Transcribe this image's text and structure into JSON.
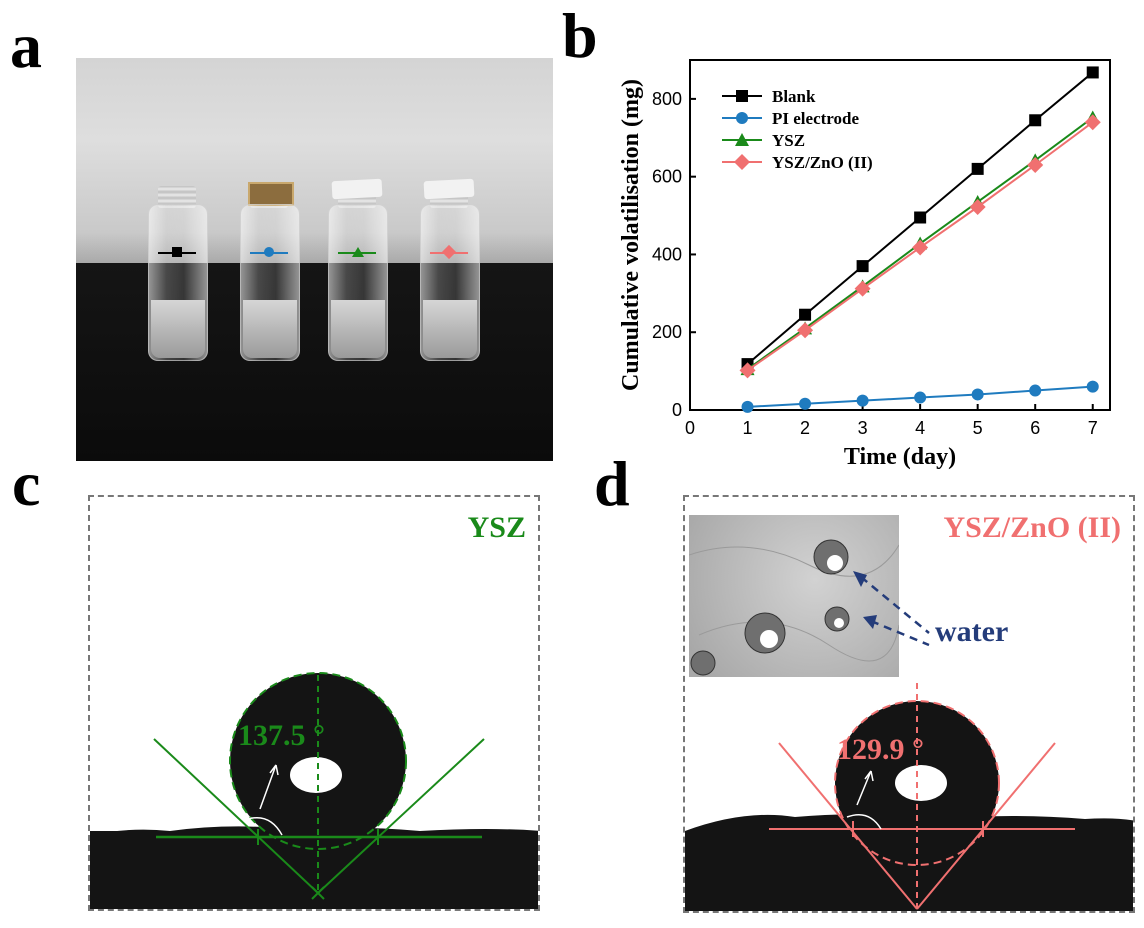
{
  "panel_labels": {
    "a": "a",
    "b": "b",
    "c": "c",
    "d": "d"
  },
  "colors": {
    "blank": "#000000",
    "pi": "#1f7bbf",
    "ysz": "#1a8a1a",
    "yszzno": "#f07070",
    "water_arrow": "#243c7a"
  },
  "chart_data": {
    "type": "line",
    "x": [
      1,
      2,
      3,
      4,
      5,
      6,
      7
    ],
    "series": [
      {
        "name": "Blank",
        "marker": "square",
        "color": "#000000",
        "values": [
          118,
          245,
          370,
          495,
          620,
          745,
          868
        ]
      },
      {
        "name": "PI electrode",
        "marker": "circle",
        "color": "#1f7bbf",
        "values": [
          8,
          16,
          24,
          32,
          40,
          50,
          60
        ]
      },
      {
        "name": "YSZ",
        "marker": "triangle",
        "color": "#1a8a1a",
        "values": [
          105,
          210,
          318,
          428,
          535,
          642,
          752
        ]
      },
      {
        "name": "YSZ/ZnO (II)",
        "marker": "diamond",
        "color": "#f07070",
        "values": [
          102,
          205,
          312,
          418,
          522,
          630,
          740
        ]
      }
    ],
    "xlabel": "Time (day)",
    "ylabel": "Cumulative volatilisation (mg)",
    "xlim": [
      0,
      7.3
    ],
    "ylim": [
      0,
      900
    ],
    "xticks": [
      0,
      1,
      2,
      3,
      4,
      5,
      6,
      7
    ],
    "yticks": [
      0,
      200,
      400,
      600,
      800
    ],
    "legend_position": "top-left",
    "grid": false
  },
  "panel_c": {
    "tag": "YSZ",
    "contact_angle": "137.5 °",
    "color": "#1a8a1a",
    "angle_value": 137.5
  },
  "panel_d": {
    "tag": "YSZ/ZnO (II)",
    "contact_angle": "129.9 °",
    "color": "#f07070",
    "angle_value": 129.9,
    "inset_label": "water"
  },
  "icons": {
    "vial_markers": [
      "square",
      "circle",
      "triangle",
      "diamond"
    ]
  }
}
